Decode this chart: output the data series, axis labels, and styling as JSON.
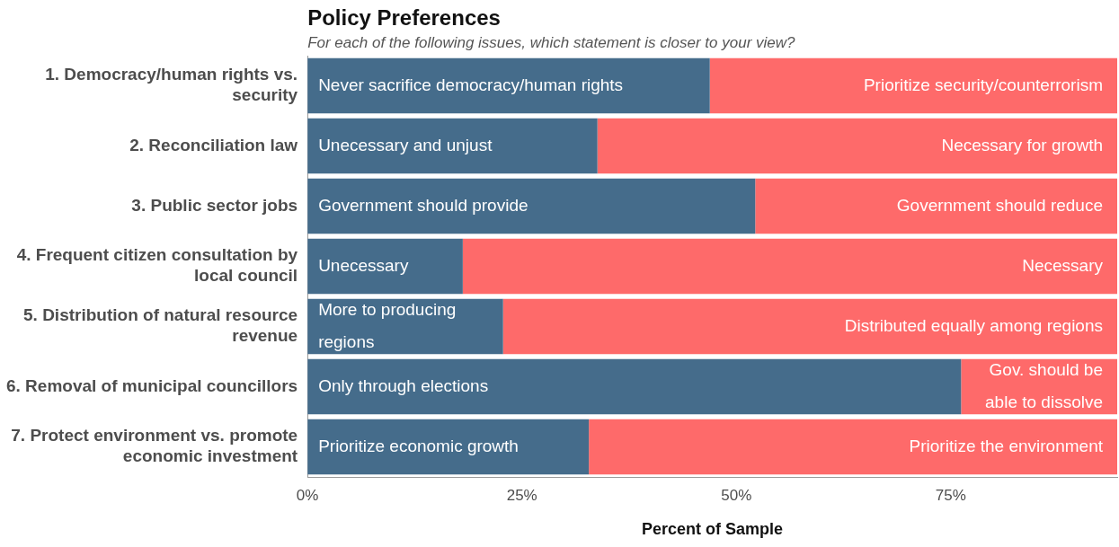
{
  "chart_data": {
    "type": "bar",
    "orientation": "horizontal",
    "stacked": true,
    "title": "Policy Preferences",
    "subtitle": "For each of the following issues, which statement is closer to your view?",
    "xlabel": "Percent of Sample",
    "categories": [
      "1. Democracy/human rights vs. security",
      "2. Reconciliation law",
      "3. Public sector jobs",
      "4. Frequent citizen consultation by local council",
      "5. Distribution of natural resource revenue",
      "6. Removal of municipal councillors",
      "7. Protect environment vs. promote economic investment"
    ],
    "series": [
      {
        "color": "#456c8b",
        "values": [
          46.9,
          33.8,
          52.2,
          18.1,
          22.8,
          76.2,
          32.8
        ],
        "value_labels": [
          "Never sacrifice democracy/human rights",
          "Unecessary and unjust",
          "Government should provide",
          "Unecessary",
          "More to producing regions",
          "Only through elections",
          "Prioritize economic growth"
        ]
      },
      {
        "color": "#fe6a6a",
        "values": [
          47.5,
          60.6,
          42.2,
          76.3,
          71.6,
          18.2,
          61.6
        ],
        "value_labels": [
          "Prioritize security/counterrorism",
          "Necessary for growth",
          "Government should reduce",
          "Necessary",
          "Distributed equally among regions",
          "Gov. should be able to dissolve",
          "Prioritize the environment"
        ]
      }
    ],
    "xlim": [
      0,
      94.4
    ],
    "xticks": [
      {
        "value": 0,
        "label": "0%"
      },
      {
        "value": 25,
        "label": "25%"
      },
      {
        "value": 50,
        "label": "50%"
      },
      {
        "value": 75,
        "label": "75%"
      }
    ],
    "grid": false,
    "legend": false
  }
}
